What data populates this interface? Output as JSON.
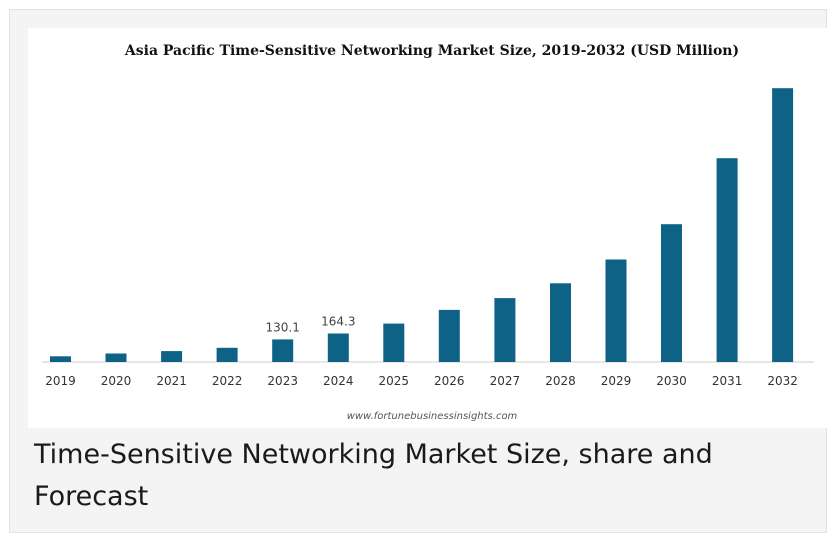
{
  "caption": "Time-Sensitive Networking Market Size, share and Forecast",
  "chart_data": {
    "type": "bar",
    "title": "Asia Pacific Time-Sensitive Networking Market Size, 2019-2032 (USD Million)",
    "source": "www.fortunebusinessinsights.com",
    "categories": [
      "2019",
      "2020",
      "2021",
      "2022",
      "2023",
      "2024",
      "2025",
      "2026",
      "2027",
      "2028",
      "2029",
      "2030",
      "2031",
      "2032"
    ],
    "values": [
      33,
      49,
      63,
      82,
      130.1,
      164.3,
      221,
      300,
      368,
      453,
      590,
      793,
      1173,
      1576
    ],
    "data_labels": {
      "2023": "130.1",
      "2024": "164.3"
    },
    "xlabel": "",
    "ylabel": "",
    "ylim": [
      0,
      1600
    ],
    "grid": false,
    "legend": "none",
    "bar_color": "#0e6285",
    "axis_color": "#cfcfcf"
  }
}
